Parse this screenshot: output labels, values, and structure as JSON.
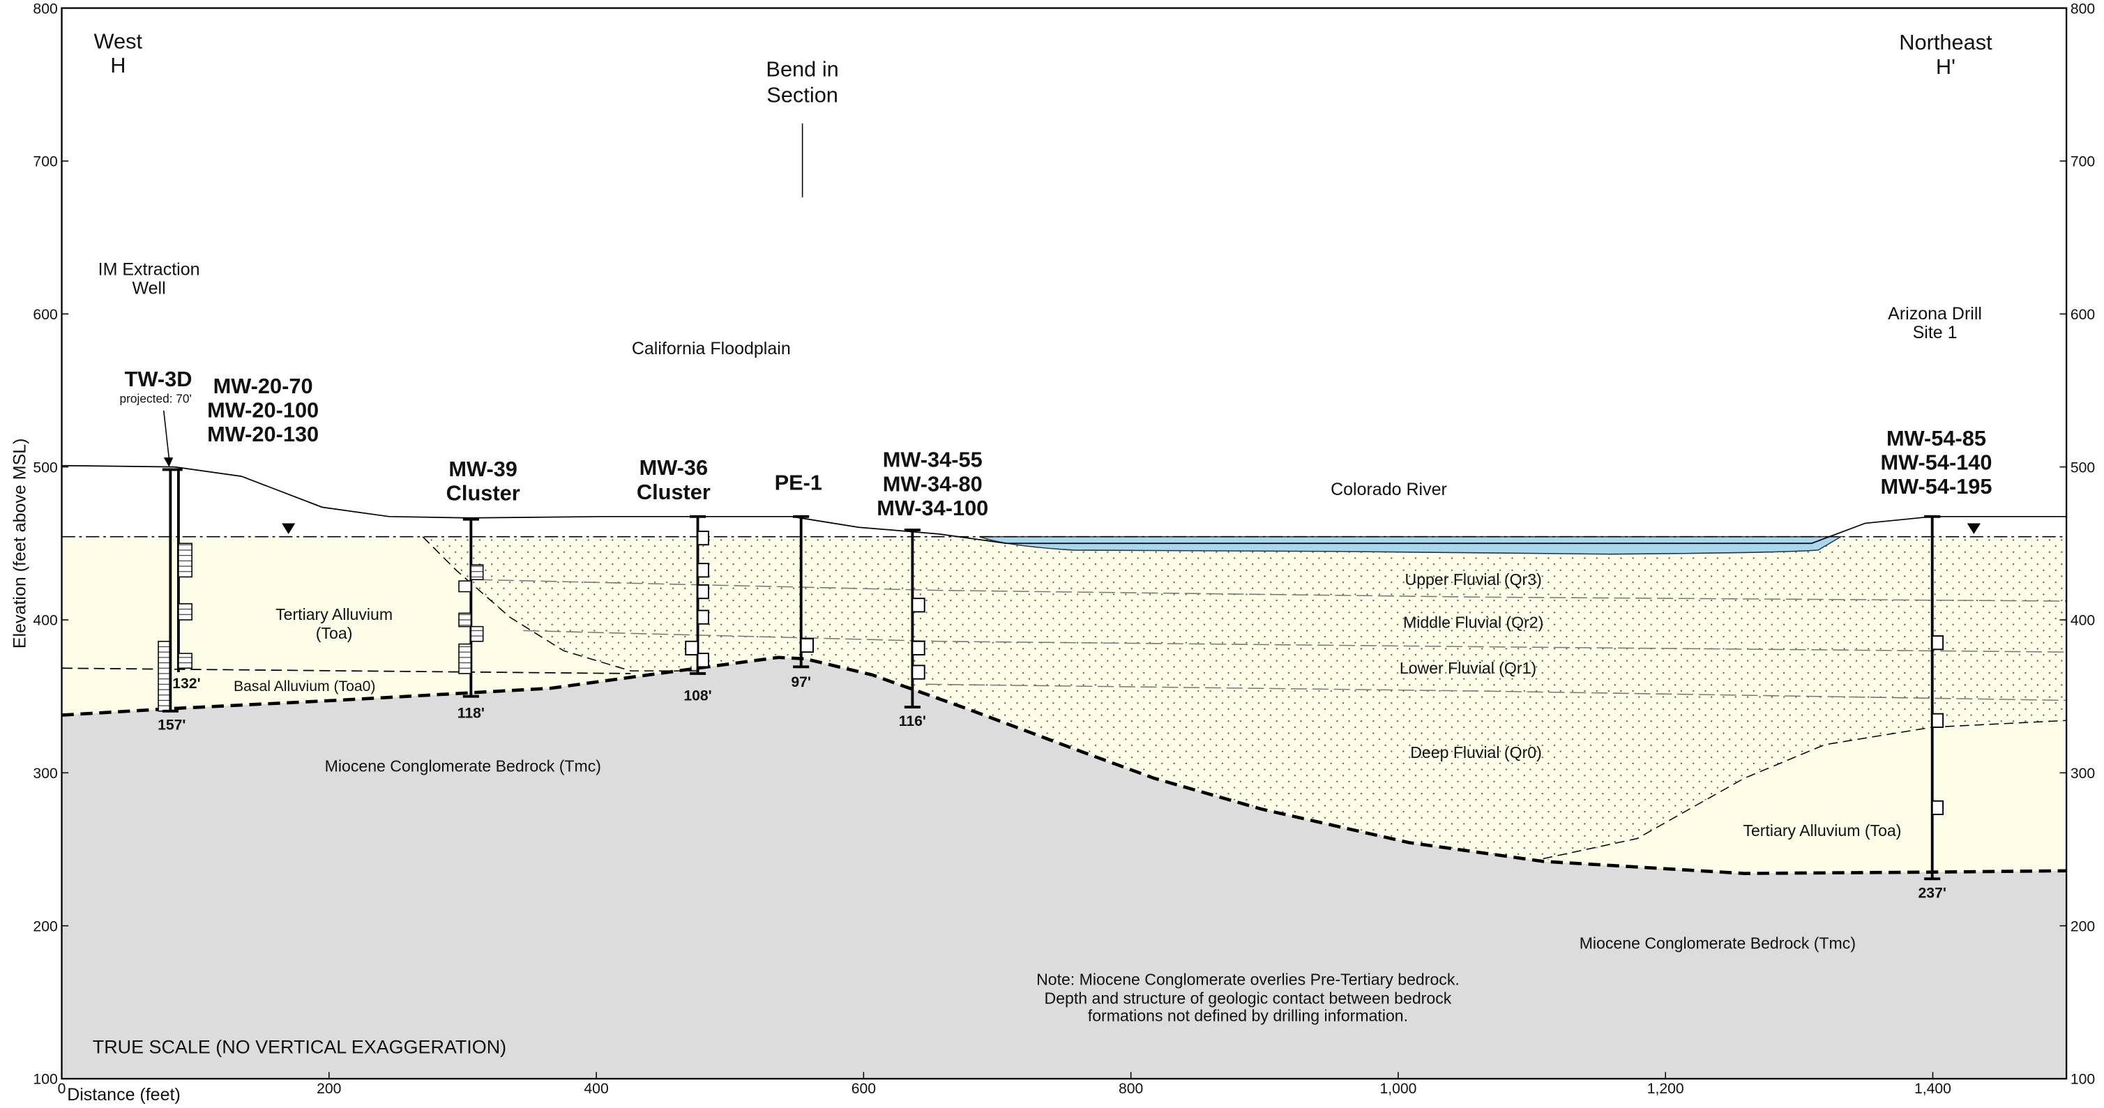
{
  "axes": {
    "x_label": "Distance (feet)",
    "y_label": "Elevation (feet above MSL)",
    "xlim": [
      0,
      1500
    ],
    "ylim": [
      100,
      800
    ],
    "xticks": [
      0,
      200,
      400,
      600,
      800,
      {
        "value": 1000,
        "label": "1,000"
      },
      {
        "value": 1200,
        "label": "1,200"
      },
      {
        "value": 1400,
        "label": "1,400"
      }
    ],
    "yticks": [
      100,
      200,
      300,
      400,
      500,
      600,
      700,
      800
    ]
  },
  "section_ends": {
    "left": [
      "West",
      "H"
    ],
    "right": [
      "Northeast",
      "H'"
    ]
  },
  "bend": [
    "Bend in",
    "Section"
  ],
  "locations": {
    "im_well": [
      "IM Extraction",
      "Well"
    ],
    "arizona": [
      "Arizona Drill",
      "Site 1"
    ],
    "california": "California Floodplain",
    "river": "Colorado River"
  },
  "wells": [
    {
      "name": [
        "TW-3D"
      ],
      "note": "projected: 70'",
      "depth": "157'"
    },
    {
      "name": [
        "MW-20-70",
        "MW-20-100",
        "MW-20-130"
      ],
      "depth": "132'"
    },
    {
      "name": [
        "MW-39",
        "Cluster"
      ],
      "depth": "118'"
    },
    {
      "name": [
        "MW-36",
        "Cluster"
      ],
      "depth": "108'"
    },
    {
      "name": [
        "PE-1"
      ],
      "depth": "97'"
    },
    {
      "name": [
        "MW-34-55",
        "MW-34-80",
        "MW-34-100"
      ],
      "depth": "116'"
    },
    {
      "name": [
        "MW-54-85",
        "MW-54-140",
        "MW-54-195"
      ],
      "depth": "237'"
    }
  ],
  "units": {
    "qr3": "Upper Fluvial (Qr3)",
    "qr2": "Middle Fluvial (Qr2)",
    "qr1": "Lower Fluvial (Qr1)",
    "qr0": "Deep Fluvial (Qr0)",
    "toa_left": [
      "Tertiary Alluvium",
      "(Toa)"
    ],
    "toa0": "Basal Alluvium (Toa0)",
    "toa_right": "Tertiary Alluvium (Toa)",
    "tmc_left": "Miocene Conglomerate Bedrock (Tmc)",
    "tmc_right": "Miocene Conglomerate Bedrock (Tmc)"
  },
  "note": [
    "Note: Miocene Conglomerate overlies Pre-Tertiary bedrock.",
    "Depth and structure of geologic contact between bedrock",
    "formations not defined by drilling information."
  ],
  "scale_note": "TRUE SCALE (NO VERTICAL EXAGGERATION)"
}
